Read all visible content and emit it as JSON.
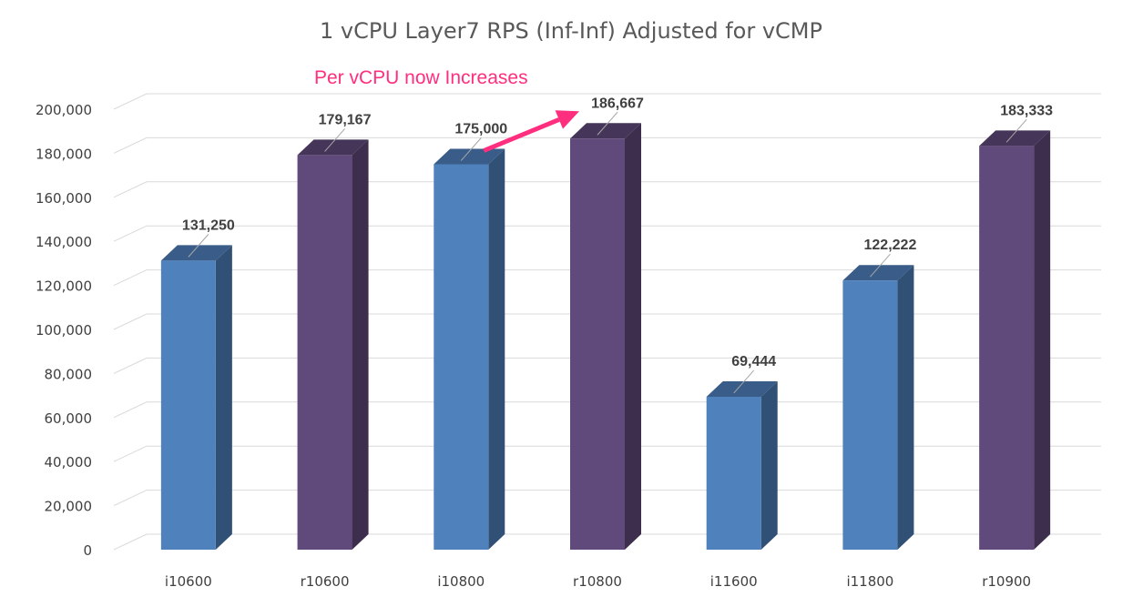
{
  "chart_data": {
    "type": "bar",
    "title": "1 vCPU Layer7 RPS (Inf-Inf) Adjusted for vCMP",
    "categories": [
      "i10600",
      "r10600",
      "i10800",
      "r10800",
      "i11600",
      "i11800",
      "r10900"
    ],
    "values": [
      131250,
      179167,
      175000,
      186667,
      69444,
      122222,
      183333
    ],
    "value_labels": [
      "131,250",
      "179,167",
      "175,000",
      "186,667",
      "69,444",
      "122,222",
      "183,333"
    ],
    "ylim": [
      0,
      200000
    ],
    "yticks": [
      0,
      20000,
      40000,
      60000,
      80000,
      100000,
      120000,
      140000,
      160000,
      180000,
      200000
    ],
    "ytick_labels": [
      "0",
      "20,000",
      "40,000",
      "60,000",
      "80,000",
      "100,000",
      "120,000",
      "140,000",
      "160,000",
      "180,000",
      "200,000"
    ],
    "xlabel": "",
    "ylabel": "",
    "grid": true,
    "bar_colors": [
      "#4F81BD",
      "#604A7B",
      "#4F81BD",
      "#604A7B",
      "#4F81BD",
      "#4F81BD",
      "#604A7B"
    ],
    "annotation": {
      "text": "Per vCPU now Increases",
      "color": "#FF2E7E",
      "from_category": "i10800",
      "to_category": "r10800"
    }
  }
}
